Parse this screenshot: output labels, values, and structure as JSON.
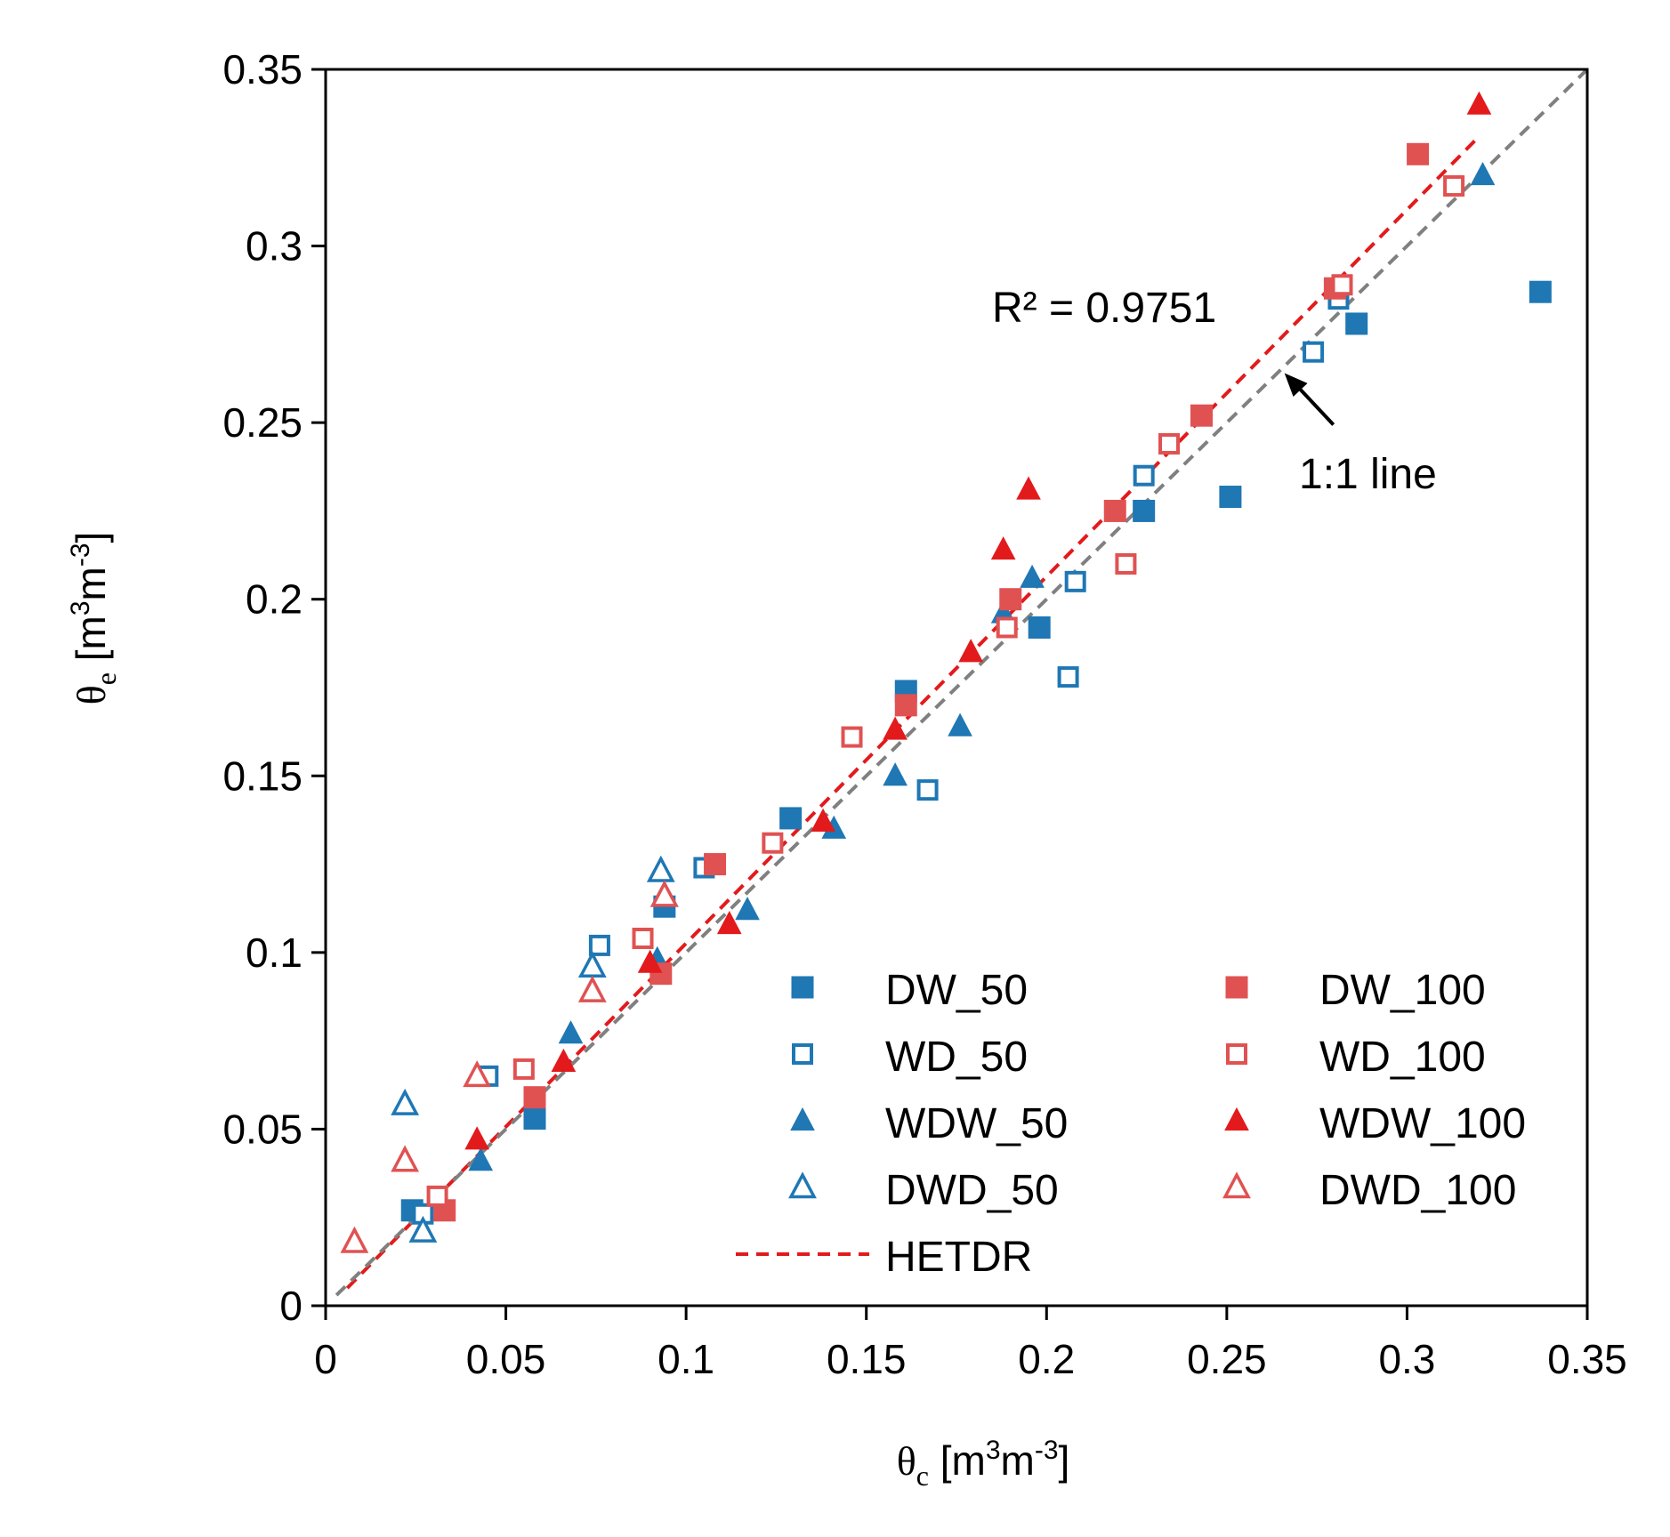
{
  "chart_data": {
    "type": "scatter",
    "title": "",
    "xlabel": {
      "symbol": "θ",
      "subscript": "c",
      "unit_prefix": " [m",
      "unit_sup1": "3",
      "unit_mid": "m",
      "unit_sup2": "-3",
      "unit_suffix": "]"
    },
    "ylabel": {
      "symbol": "θ",
      "subscript": "e",
      "unit_prefix": " [m",
      "unit_sup1": "3",
      "unit_mid": "m",
      "unit_sup2": "-3",
      "unit_suffix": "]"
    },
    "xlim": [
      0,
      0.35
    ],
    "ylim": [
      0,
      0.35
    ],
    "x_ticks": [
      0,
      0.05,
      0.1,
      0.15,
      0.2,
      0.25,
      0.3,
      0.35
    ],
    "x_tick_labels": [
      "0",
      "0.05",
      "0.1",
      "0.15",
      "0.2",
      "0.25",
      "0.3",
      "0.35"
    ],
    "y_ticks": [
      0,
      0.05,
      0.1,
      0.15,
      0.2,
      0.25,
      0.3,
      0.35
    ],
    "y_tick_labels": [
      "0",
      "0.05",
      "0.1",
      "0.15",
      "0.2",
      "0.25",
      "0.3",
      "0.35"
    ],
    "grid": false,
    "legend_position": "bottom-right",
    "colors": {
      "blue": "#1f77b4",
      "red": "#e05252",
      "red_dark": "#e31a1c",
      "gray": "#808080"
    },
    "series": [
      {
        "name": "DW_50",
        "color": "#1f77b4",
        "marker": "square",
        "filled": true,
        "points": [
          [
            0.024,
            0.027
          ],
          [
            0.058,
            0.053
          ],
          [
            0.094,
            0.113
          ],
          [
            0.129,
            0.138
          ],
          [
            0.161,
            0.174
          ],
          [
            0.198,
            0.192
          ],
          [
            0.227,
            0.225
          ],
          [
            0.251,
            0.229
          ],
          [
            0.286,
            0.278
          ],
          [
            0.337,
            0.287
          ]
        ]
      },
      {
        "name": "WD_50",
        "color": "#1f77b4",
        "marker": "square",
        "filled": false,
        "points": [
          [
            0.027,
            0.026
          ],
          [
            0.045,
            0.065
          ],
          [
            0.076,
            0.102
          ],
          [
            0.105,
            0.124
          ],
          [
            0.167,
            0.146
          ],
          [
            0.206,
            0.178
          ],
          [
            0.208,
            0.205
          ],
          [
            0.227,
            0.235
          ],
          [
            0.274,
            0.27
          ],
          [
            0.281,
            0.285
          ]
        ]
      },
      {
        "name": "WDW_50",
        "color": "#1f77b4",
        "marker": "triangle",
        "filled": true,
        "points": [
          [
            0.043,
            0.041
          ],
          [
            0.068,
            0.077
          ],
          [
            0.092,
            0.098
          ],
          [
            0.117,
            0.112
          ],
          [
            0.141,
            0.135
          ],
          [
            0.158,
            0.15
          ],
          [
            0.176,
            0.164
          ],
          [
            0.188,
            0.196
          ],
          [
            0.196,
            0.206
          ],
          [
            0.321,
            0.32
          ]
        ]
      },
      {
        "name": "DWD_50",
        "color": "#1f77b4",
        "marker": "triangle",
        "filled": false,
        "points": [
          [
            0.022,
            0.057
          ],
          [
            0.027,
            0.021
          ],
          [
            0.074,
            0.096
          ],
          [
            0.093,
            0.123
          ],
          [
            0.094,
            0.116
          ]
        ]
      },
      {
        "name": "DW_100",
        "color": "#e05252",
        "marker": "square",
        "filled": true,
        "points": [
          [
            0.033,
            0.027
          ],
          [
            0.058,
            0.059
          ],
          [
            0.093,
            0.094
          ],
          [
            0.108,
            0.125
          ],
          [
            0.161,
            0.17
          ],
          [
            0.19,
            0.2
          ],
          [
            0.219,
            0.225
          ],
          [
            0.243,
            0.252
          ],
          [
            0.28,
            0.288
          ],
          [
            0.303,
            0.326
          ]
        ]
      },
      {
        "name": "WD_100",
        "color": "#e05252",
        "marker": "square",
        "filled": false,
        "points": [
          [
            0.031,
            0.031
          ],
          [
            0.055,
            0.067
          ],
          [
            0.088,
            0.104
          ],
          [
            0.124,
            0.131
          ],
          [
            0.146,
            0.161
          ],
          [
            0.189,
            0.192
          ],
          [
            0.222,
            0.21
          ],
          [
            0.234,
            0.244
          ],
          [
            0.282,
            0.289
          ],
          [
            0.313,
            0.317
          ]
        ]
      },
      {
        "name": "WDW_100",
        "color": "#e31a1c",
        "marker": "triangle",
        "filled": true,
        "points": [
          [
            0.042,
            0.047
          ],
          [
            0.066,
            0.069
          ],
          [
            0.09,
            0.097
          ],
          [
            0.112,
            0.108
          ],
          [
            0.138,
            0.137
          ],
          [
            0.158,
            0.163
          ],
          [
            0.179,
            0.185
          ],
          [
            0.188,
            0.214
          ],
          [
            0.195,
            0.231
          ],
          [
            0.32,
            0.34
          ]
        ]
      },
      {
        "name": "DWD_100",
        "color": "#e05252",
        "marker": "triangle",
        "filled": false,
        "points": [
          [
            0.008,
            0.018
          ],
          [
            0.022,
            0.041
          ],
          [
            0.042,
            0.065
          ],
          [
            0.074,
            0.089
          ],
          [
            0.094,
            0.116
          ]
        ]
      }
    ],
    "lines": [
      {
        "name": "HETDR",
        "color": "#e31a1c",
        "dash": "dashed",
        "x": [
          0.006,
          0.319
        ],
        "y": [
          0.005,
          0.33
        ],
        "in_legend": true
      },
      {
        "name": "1:1 line",
        "color": "#808080",
        "dash": "dashed",
        "x": [
          0.003,
          0.35
        ],
        "y": [
          0.003,
          0.35
        ],
        "in_legend": false
      }
    ],
    "annotations": [
      {
        "text": "R² = 0.9751",
        "near_x": 0.225,
        "near_y": 0.282
      },
      {
        "text": "1:1 line",
        "arrow_to": [
          0.266,
          0.264
        ],
        "label_at": [
          0.27,
          0.235
        ]
      }
    ],
    "legend": {
      "left_column": [
        "DW_50",
        "WD_50",
        "WDW_50",
        "DWD_50",
        "HETDR"
      ],
      "right_column": [
        "DW_100",
        "WD_100",
        "WDW_100",
        "DWD_100"
      ]
    }
  }
}
